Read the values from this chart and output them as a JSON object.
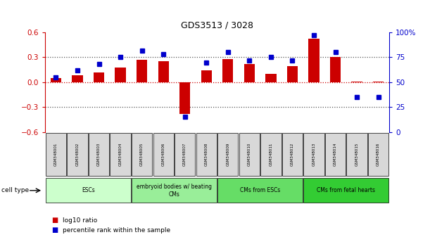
{
  "title": "GDS3513 / 3028",
  "samples": [
    "GSM348001",
    "GSM348002",
    "GSM348003",
    "GSM348004",
    "GSM348005",
    "GSM348006",
    "GSM348007",
    "GSM348008",
    "GSM348009",
    "GSM348010",
    "GSM348011",
    "GSM348012",
    "GSM348013",
    "GSM348014",
    "GSM348015",
    "GSM348016"
  ],
  "log10_ratio": [
    0.05,
    0.08,
    0.12,
    0.18,
    0.27,
    0.25,
    -0.38,
    0.14,
    0.28,
    0.22,
    0.1,
    0.19,
    0.52,
    0.3,
    0.01,
    0.01
  ],
  "percentile_rank": [
    55,
    62,
    68,
    75,
    82,
    78,
    15,
    70,
    80,
    72,
    75,
    72,
    97,
    80,
    35,
    35
  ],
  "ylim_left": [
    -0.6,
    0.6
  ],
  "ylim_right": [
    0,
    100
  ],
  "yticks_left": [
    -0.6,
    -0.3,
    0.0,
    0.3,
    0.6
  ],
  "yticks_right": [
    0,
    25,
    50,
    75,
    100
  ],
  "ytick_labels_right": [
    "0",
    "25",
    "50",
    "75",
    "100%"
  ],
  "bar_color": "#cc0000",
  "marker_color": "#0000cc",
  "dotted_line_color": "#555555",
  "zero_line_color": "#cc0000",
  "sample_box_color": "#d8d8d8",
  "cell_groups": [
    {
      "label": "ESCs",
      "start": 0,
      "end": 3,
      "color": "#ccffcc"
    },
    {
      "label": "embryoid bodies w/ beating\nCMs",
      "start": 4,
      "end": 7,
      "color": "#99ee99"
    },
    {
      "label": "CMs from ESCs",
      "start": 8,
      "end": 11,
      "color": "#66dd66"
    },
    {
      "label": "CMs from fetal hearts",
      "start": 12,
      "end": 15,
      "color": "#33cc33"
    }
  ],
  "cell_type_label": "cell type",
  "legend_items": [
    {
      "label": "log10 ratio",
      "color": "#cc0000"
    },
    {
      "label": "percentile rank within the sample",
      "color": "#0000cc"
    }
  ]
}
